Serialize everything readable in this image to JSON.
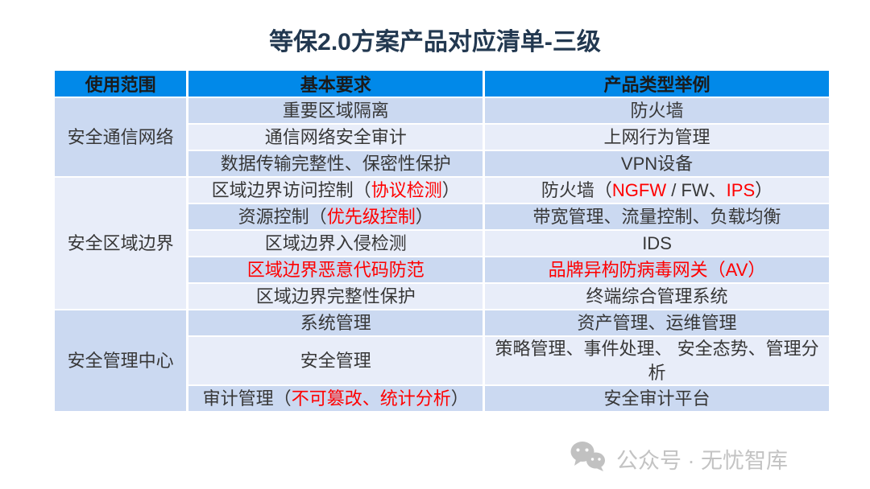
{
  "title": "等保2.0方案产品对应清单-三级",
  "table": {
    "headers": [
      "使用范围",
      "基本要求",
      "产品类型举例"
    ],
    "groups": [
      {
        "scope": "安全通信网络",
        "rows": [
          {
            "req": [
              {
                "t": "重要区域隔离"
              }
            ],
            "prod": [
              {
                "t": "防火墙"
              }
            ]
          },
          {
            "req": [
              {
                "t": "通信网络安全审计"
              }
            ],
            "prod": [
              {
                "t": "上网行为管理"
              }
            ]
          },
          {
            "req": [
              {
                "t": "数据传输完整性、保密性保护"
              }
            ],
            "prod": [
              {
                "t": "VPN设备"
              }
            ]
          }
        ]
      },
      {
        "scope": "安全区域边界",
        "rows": [
          {
            "req": [
              {
                "t": "区域边界访问控制（"
              },
              {
                "t": "协议检测",
                "red": true
              },
              {
                "t": "）"
              }
            ],
            "prod": [
              {
                "t": "防火墙（"
              },
              {
                "t": "NGFW",
                "red": true
              },
              {
                "t": " / FW、"
              },
              {
                "t": "IPS",
                "red": true
              },
              {
                "t": "）"
              }
            ]
          },
          {
            "req": [
              {
                "t": "资源控制（"
              },
              {
                "t": "优先级控制",
                "red": true
              },
              {
                "t": "）"
              }
            ],
            "prod": [
              {
                "t": "带宽管理、流量控制、负载均衡"
              }
            ]
          },
          {
            "req": [
              {
                "t": "区域边界入侵检测"
              }
            ],
            "prod": [
              {
                "t": "IDS"
              }
            ]
          },
          {
            "req": [
              {
                "t": "区域边界恶意代码防范",
                "red": true
              }
            ],
            "prod": [
              {
                "t": "品牌异构防病毒网关（AV）",
                "red": true
              }
            ]
          },
          {
            "req": [
              {
                "t": "区域边界完整性保护"
              }
            ],
            "prod": [
              {
                "t": "终端综合管理系统"
              }
            ]
          }
        ]
      },
      {
        "scope": "安全管理中心",
        "rows": [
          {
            "req": [
              {
                "t": "系统管理"
              }
            ],
            "prod": [
              {
                "t": "资产管理、运维管理"
              }
            ]
          },
          {
            "req": [
              {
                "t": "安全管理"
              }
            ],
            "prod": [
              {
                "t": "策略管理、事件处理、 安全态势、管理分析"
              }
            ]
          },
          {
            "req": [
              {
                "t": "审计管理（"
              },
              {
                "t": "不可篡改、统计分析",
                "red": true
              },
              {
                "t": "）"
              }
            ],
            "prod": [
              {
                "t": "安全审计平台"
              }
            ]
          }
        ]
      }
    ]
  },
  "footer": {
    "wechat_label": "公众号 · 无忧智库"
  },
  "colors": {
    "header_bg": "#0189E9",
    "row_dark": "#CBD9F1",
    "row_light": "#E8EDF9",
    "accent_red": "#FF0000",
    "title_color": "#223850",
    "footer_gray": "#C3C3C3"
  }
}
